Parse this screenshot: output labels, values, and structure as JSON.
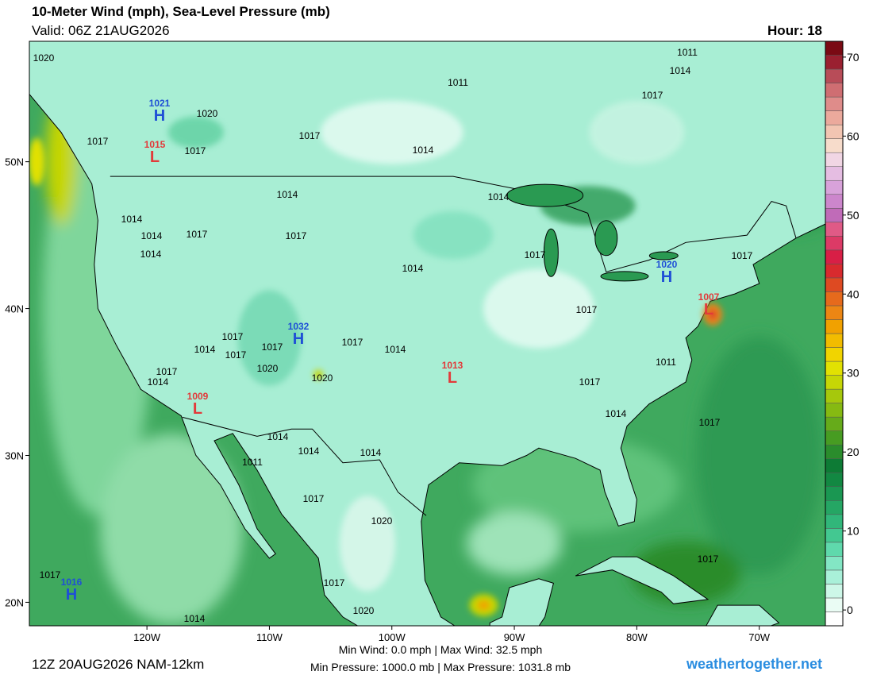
{
  "header": {
    "title": "10-Meter Wind (mph), Sea-Level Pressure (mb)",
    "valid": "Valid: 06Z 21AUG2026",
    "hour": "Hour: 18"
  },
  "map": {
    "lonlim": [
      -129.6,
      -64.6
    ],
    "latlim": [
      18.4,
      58.2
    ],
    "lon_ticks": [
      {
        "value": -120,
        "label": "120W"
      },
      {
        "value": -110,
        "label": "110W"
      },
      {
        "value": -100,
        "label": "100W"
      },
      {
        "value": -90,
        "label": "90W"
      },
      {
        "value": -80,
        "label": "80W"
      },
      {
        "value": -70,
        "label": "70W"
      }
    ],
    "lat_ticks": [
      {
        "value": 50,
        "label": "50N"
      },
      {
        "value": 40,
        "label": "40N"
      },
      {
        "value": 30,
        "label": "30N"
      },
      {
        "value": 20,
        "label": "20N"
      }
    ],
    "center_colors": {
      "H": "#1f4fd6",
      "L": "#e23a3a"
    },
    "centers": [
      {
        "symbol": "H",
        "pressure": "1021"
      },
      {
        "symbol": "L",
        "pressure": "1015"
      },
      {
        "symbol": "H",
        "pressure": "1020"
      },
      {
        "symbol": "L",
        "pressure": "1007"
      },
      {
        "symbol": "H",
        "pressure": "1032"
      },
      {
        "symbol": "L",
        "pressure": "1013"
      },
      {
        "symbol": "L",
        "pressure": "1009"
      },
      {
        "symbol": "H",
        "pressure": "1016"
      }
    ],
    "isobar_labels": [
      "1020",
      "1020",
      "1017",
      "1017",
      "1017",
      "1011",
      "1011",
      "1014",
      "1017",
      "1014",
      "1014",
      "1014",
      "1014",
      "1014",
      "1017",
      "1017",
      "1014",
      "1014",
      "1017",
      "1017",
      "1017",
      "1017",
      "1017",
      "1017",
      "1014",
      "1017",
      "1014",
      "1020",
      "1020",
      "1017",
      "1014",
      "1011",
      "1017",
      "1014",
      "1017",
      "1014",
      "1014",
      "1014",
      "1011",
      "1017",
      "1020",
      "1017",
      "1017",
      "1017",
      "1020",
      "1014"
    ]
  },
  "colorbar": {
    "lim": [
      -2,
      72
    ],
    "ticks": [
      0,
      10,
      20,
      30,
      40,
      50,
      60,
      70
    ],
    "colors": [
      "#ffffff",
      "#eafcf4",
      "#cdf7e8",
      "#a9f0d9",
      "#83e6c4",
      "#5fd9ac",
      "#43c891",
      "#31b67a",
      "#25a664",
      "#1a9752",
      "#128842",
      "#0d7b35",
      "#2a8c2c",
      "#479c22",
      "#66ab1a",
      "#86ba12",
      "#a6c80c",
      "#c6d606",
      "#e2e102",
      "#f1d400",
      "#f2bc00",
      "#f1a100",
      "#ec8614",
      "#e66a1c",
      "#de4a22",
      "#d82a2e",
      "#d81f46",
      "#dc3a66",
      "#e05a86",
      "#c06bb8",
      "#cc86cc",
      "#d8a2da",
      "#e5bde2",
      "#f1d6e4",
      "#f7dccb",
      "#f2c5b2",
      "#eba99c",
      "#df8c8a",
      "#cf6e72",
      "#b84c58",
      "#9a2030",
      "#7a0a14"
    ]
  },
  "footer": {
    "run": "12Z 20AUG2026 NAM-12km",
    "wind": "Min Wind:   0.0 mph | Max Wind:  32.5 mph",
    "pressure": "Min Pressure: 1000.0 mb | Max Pressure: 1031.8 mb",
    "site": "weathertogether.net"
  }
}
